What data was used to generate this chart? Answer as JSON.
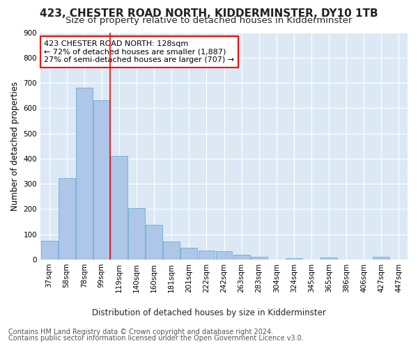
{
  "title": "423, CHESTER ROAD NORTH, KIDDERMINSTER, DY10 1TB",
  "subtitle": "Size of property relative to detached houses in Kidderminster",
  "xlabel": "Distribution of detached houses by size in Kidderminster",
  "ylabel": "Number of detached properties",
  "categories": [
    "37sqm",
    "58sqm",
    "78sqm",
    "99sqm",
    "119sqm",
    "140sqm",
    "160sqm",
    "181sqm",
    "201sqm",
    "222sqm",
    "242sqm",
    "263sqm",
    "283sqm",
    "304sqm",
    "324sqm",
    "345sqm",
    "365sqm",
    "386sqm",
    "406sqm",
    "427sqm",
    "447sqm"
  ],
  "values": [
    75,
    322,
    680,
    632,
    410,
    204,
    138,
    72,
    48,
    36,
    34,
    20,
    10,
    0,
    5,
    0,
    8,
    0,
    0,
    10,
    0
  ],
  "bar_color": "#aec6e8",
  "bar_edge_color": "#6baed6",
  "annotation_line1": "423 CHESTER ROAD NORTH: 128sqm",
  "annotation_line2": "← 72% of detached houses are smaller (1,887)",
  "annotation_line3": "27% of semi-detached houses are larger (707) →",
  "footnote1": "Contains HM Land Registry data © Crown copyright and database right 2024.",
  "footnote2": "Contains public sector information licensed under the Open Government Licence v3.0.",
  "ylim": [
    0,
    900
  ],
  "yticks": [
    0,
    100,
    200,
    300,
    400,
    500,
    600,
    700,
    800,
    900
  ],
  "fig_bg_color": "#ffffff",
  "plot_bg_color": "#dce9f5",
  "grid_color": "#ffffff",
  "title_fontsize": 11,
  "subtitle_fontsize": 9.5,
  "axis_label_fontsize": 8.5,
  "tick_fontsize": 7.5,
  "annotation_fontsize": 8,
  "footnote_fontsize": 7,
  "vline_position": 3.5
}
